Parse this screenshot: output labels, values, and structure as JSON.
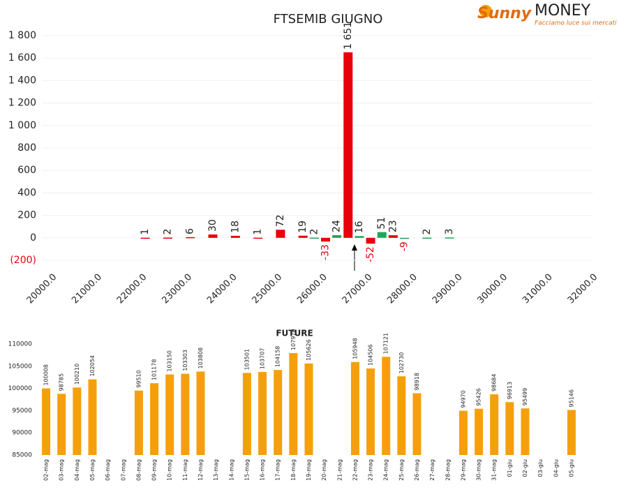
{
  "logo": {
    "brand": "Sunny",
    "name": "MONEY",
    "tagline": "Facciamo luce sui mercati"
  },
  "chart_data": [
    {
      "type": "bar",
      "title": "FTSEMIB GIUGNO",
      "x": [
        22000,
        22500,
        23000,
        23500,
        24000,
        24500,
        25000,
        25500,
        25750,
        26000,
        26250,
        26500,
        26750,
        27000,
        27250,
        27500,
        27750,
        28250,
        28750
      ],
      "values": [
        1,
        2,
        6,
        30,
        18,
        1,
        72,
        19,
        2,
        -33,
        24,
        1651,
        16,
        -52,
        51,
        23,
        -9,
        2,
        3
      ],
      "value_labels": [
        "1",
        "2",
        "6",
        "30",
        "18",
        "1",
        "72",
        "19",
        "2",
        "-33",
        "24",
        "1 651",
        "16",
        "-52",
        "51",
        "23",
        "-9",
        "2",
        "3"
      ],
      "colors": [
        "#e8000b",
        "#e8000b",
        "#e8000b",
        "#e8000b",
        "#e8000b",
        "#e8000b",
        "#e8000b",
        "#e8000b",
        "#1fa75a",
        "#e8000b",
        "#1fa75a",
        "#e8000b",
        "#1fa75a",
        "#e8000b",
        "#1fa75a",
        "#e8000b",
        "#1fa75a",
        "#1fa75a",
        "#1fa75a"
      ],
      "xlim": [
        20000,
        32000
      ],
      "xticks": [
        {
          "value": 20000,
          "label": "20000.0"
        },
        {
          "value": 21000,
          "label": "21000.0"
        },
        {
          "value": 22000,
          "label": "22000.0"
        },
        {
          "value": 23000,
          "label": "23000.0"
        },
        {
          "value": 24000,
          "label": "24000.0"
        },
        {
          "value": 25000,
          "label": "25000.0"
        },
        {
          "value": 26000,
          "label": "26000.0"
        },
        {
          "value": 27000,
          "label": "27000.0"
        },
        {
          "value": 28000,
          "label": "28000.0"
        },
        {
          "value": 29000,
          "label": "29000.0"
        },
        {
          "value": 30000,
          "label": "30000.0"
        },
        {
          "value": 31000,
          "label": "31000.0"
        },
        {
          "value": 32000,
          "label": "32000.0"
        }
      ],
      "ylim": [
        -200,
        1800
      ],
      "yticks": [
        {
          "value": -200,
          "label": "(200)"
        },
        0,
        200,
        400,
        600,
        800,
        {
          "value": 1000,
          "label": "1 000"
        },
        {
          "value": 1200,
          "label": "1 200"
        },
        {
          "value": 1400,
          "label": "1 400"
        },
        {
          "value": 1600,
          "label": "1 600"
        },
        {
          "value": 1800,
          "label": "1 800"
        }
      ],
      "grid": true
    },
    {
      "type": "bar",
      "title": "FUTURE",
      "categories": [
        "02-mag",
        "03-mag",
        "04-mag",
        "05-mag",
        "06-mag",
        "07-mag",
        "08-mag",
        "09-mag",
        "10-mag",
        "11-mag",
        "12-mag",
        "13-mag",
        "14-mag",
        "15-mag",
        "16-mag",
        "17-mag",
        "18-mag",
        "19-mag",
        "20-mag",
        "21-mag",
        "22-mag",
        "23-mag",
        "24-mag",
        "25-mag",
        "26-mag",
        "27-mag",
        "28-mag",
        "29-mag",
        "30-mag",
        "31-mag",
        "01-giu",
        "02-giu",
        "03-giu",
        "04-giu",
        "05-giu"
      ],
      "values": [
        100008,
        98785,
        100210,
        102054,
        null,
        null,
        99510,
        101178,
        103150,
        103303,
        103808,
        null,
        null,
        103501,
        103707,
        104158,
        107970,
        105626,
        null,
        null,
        105948,
        104506,
        107121,
        102730,
        98918,
        null,
        null,
        94970,
        95426,
        98684,
        96913,
        95499,
        null,
        null,
        95146
      ],
      "color": "#f5a00a",
      "ylim": [
        85000,
        110000
      ],
      "yticks": [
        85000,
        90000,
        95000,
        100000,
        105000,
        110000
      ],
      "grid": false
    }
  ]
}
